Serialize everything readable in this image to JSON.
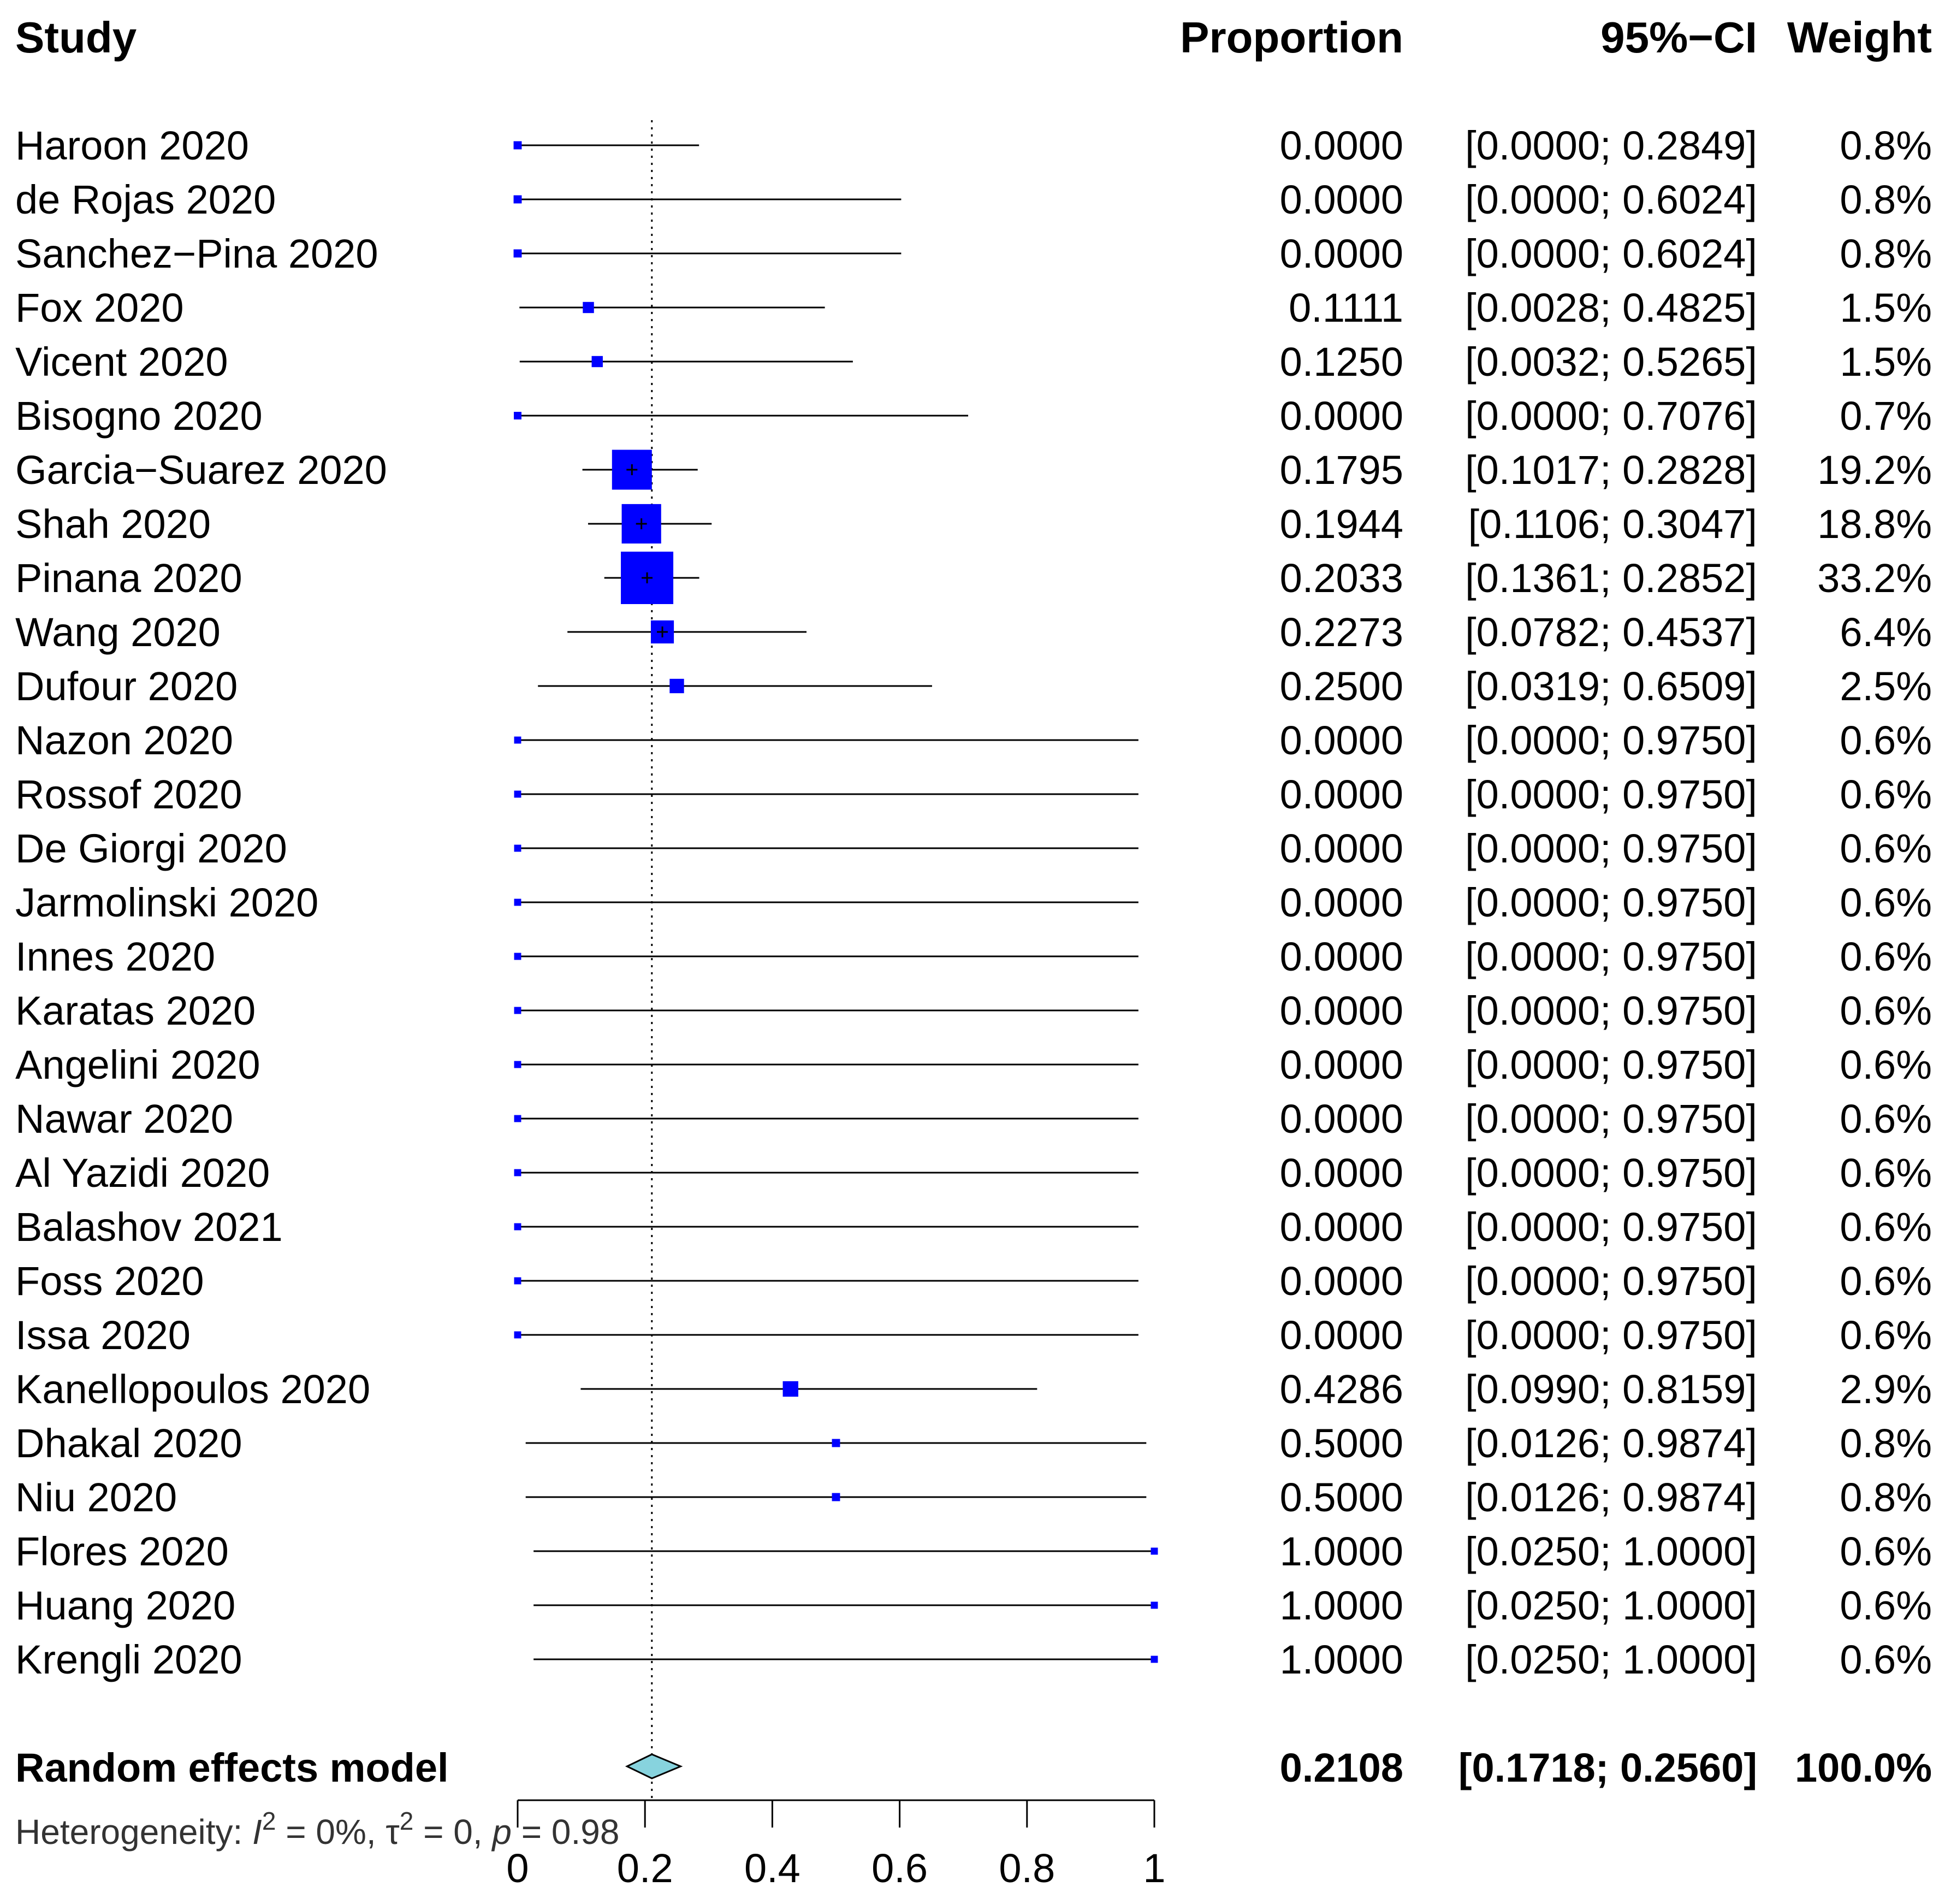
{
  "chart_data": {
    "type": "forest",
    "headers": {
      "study": "Study",
      "proportion": "Proportion",
      "ci": "95%−CI",
      "weight": "Weight"
    },
    "studies": [
      {
        "name": "Haroon 2020",
        "proportion": 0.0,
        "lower": 0.0,
        "upper": 0.2849,
        "weight": 0.8,
        "prop_text": "0.0000",
        "ci_text": "[0.0000; 0.2849]",
        "weight_text": "0.8%"
      },
      {
        "name": "de Rojas 2020",
        "proportion": 0.0,
        "lower": 0.0,
        "upper": 0.6024,
        "weight": 0.8,
        "prop_text": "0.0000",
        "ci_text": "[0.0000; 0.6024]",
        "weight_text": "0.8%"
      },
      {
        "name": "Sanchez−Pina 2020",
        "proportion": 0.0,
        "lower": 0.0,
        "upper": 0.6024,
        "weight": 0.8,
        "prop_text": "0.0000",
        "ci_text": "[0.0000; 0.6024]",
        "weight_text": "0.8%"
      },
      {
        "name": "Fox 2020",
        "proportion": 0.1111,
        "lower": 0.0028,
        "upper": 0.4825,
        "weight": 1.5,
        "prop_text": "0.1111",
        "ci_text": "[0.0028; 0.4825]",
        "weight_text": "1.5%"
      },
      {
        "name": "Vicent 2020",
        "proportion": 0.125,
        "lower": 0.0032,
        "upper": 0.5265,
        "weight": 1.5,
        "prop_text": "0.1250",
        "ci_text": "[0.0032; 0.5265]",
        "weight_text": "1.5%"
      },
      {
        "name": "Bisogno 2020",
        "proportion": 0.0,
        "lower": 0.0,
        "upper": 0.7076,
        "weight": 0.7,
        "prop_text": "0.0000",
        "ci_text": "[0.0000; 0.7076]",
        "weight_text": "0.7%"
      },
      {
        "name": "Garcia−Suarez 2020",
        "proportion": 0.1795,
        "lower": 0.1017,
        "upper": 0.2828,
        "weight": 19.2,
        "prop_text": "0.1795",
        "ci_text": "[0.1017; 0.2828]",
        "weight_text": "19.2%"
      },
      {
        "name": "Shah 2020",
        "proportion": 0.1944,
        "lower": 0.1106,
        "upper": 0.3047,
        "weight": 18.8,
        "prop_text": "0.1944",
        "ci_text": "[0.1106; 0.3047]",
        "weight_text": "18.8%"
      },
      {
        "name": "Pinana 2020",
        "proportion": 0.2033,
        "lower": 0.1361,
        "upper": 0.2852,
        "weight": 33.2,
        "prop_text": "0.2033",
        "ci_text": "[0.1361; 0.2852]",
        "weight_text": "33.2%"
      },
      {
        "name": "Wang 2020",
        "proportion": 0.2273,
        "lower": 0.0782,
        "upper": 0.4537,
        "weight": 6.4,
        "prop_text": "0.2273",
        "ci_text": "[0.0782; 0.4537]",
        "weight_text": "6.4%"
      },
      {
        "name": "Dufour 2020",
        "proportion": 0.25,
        "lower": 0.0319,
        "upper": 0.6509,
        "weight": 2.5,
        "prop_text": "0.2500",
        "ci_text": "[0.0319; 0.6509]",
        "weight_text": "2.5%"
      },
      {
        "name": "Nazon 2020",
        "proportion": 0.0,
        "lower": 0.0,
        "upper": 0.975,
        "weight": 0.6,
        "prop_text": "0.0000",
        "ci_text": "[0.0000; 0.9750]",
        "weight_text": "0.6%"
      },
      {
        "name": "Rossof 2020",
        "proportion": 0.0,
        "lower": 0.0,
        "upper": 0.975,
        "weight": 0.6,
        "prop_text": "0.0000",
        "ci_text": "[0.0000; 0.9750]",
        "weight_text": "0.6%"
      },
      {
        "name": "De Giorgi 2020",
        "proportion": 0.0,
        "lower": 0.0,
        "upper": 0.975,
        "weight": 0.6,
        "prop_text": "0.0000",
        "ci_text": "[0.0000; 0.9750]",
        "weight_text": "0.6%"
      },
      {
        "name": "Jarmolinski 2020",
        "proportion": 0.0,
        "lower": 0.0,
        "upper": 0.975,
        "weight": 0.6,
        "prop_text": "0.0000",
        "ci_text": "[0.0000; 0.9750]",
        "weight_text": "0.6%"
      },
      {
        "name": "Innes 2020",
        "proportion": 0.0,
        "lower": 0.0,
        "upper": 0.975,
        "weight": 0.6,
        "prop_text": "0.0000",
        "ci_text": "[0.0000; 0.9750]",
        "weight_text": "0.6%"
      },
      {
        "name": "Karatas 2020",
        "proportion": 0.0,
        "lower": 0.0,
        "upper": 0.975,
        "weight": 0.6,
        "prop_text": "0.0000",
        "ci_text": "[0.0000; 0.9750]",
        "weight_text": "0.6%"
      },
      {
        "name": "Angelini 2020",
        "proportion": 0.0,
        "lower": 0.0,
        "upper": 0.975,
        "weight": 0.6,
        "prop_text": "0.0000",
        "ci_text": "[0.0000; 0.9750]",
        "weight_text": "0.6%"
      },
      {
        "name": "Nawar 2020",
        "proportion": 0.0,
        "lower": 0.0,
        "upper": 0.975,
        "weight": 0.6,
        "prop_text": "0.0000",
        "ci_text": "[0.0000; 0.9750]",
        "weight_text": "0.6%"
      },
      {
        "name": "Al Yazidi 2020",
        "proportion": 0.0,
        "lower": 0.0,
        "upper": 0.975,
        "weight": 0.6,
        "prop_text": "0.0000",
        "ci_text": "[0.0000; 0.9750]",
        "weight_text": "0.6%"
      },
      {
        "name": "Balashov 2021",
        "proportion": 0.0,
        "lower": 0.0,
        "upper": 0.975,
        "weight": 0.6,
        "prop_text": "0.0000",
        "ci_text": "[0.0000; 0.9750]",
        "weight_text": "0.6%"
      },
      {
        "name": "Foss 2020",
        "proportion": 0.0,
        "lower": 0.0,
        "upper": 0.975,
        "weight": 0.6,
        "prop_text": "0.0000",
        "ci_text": "[0.0000; 0.9750]",
        "weight_text": "0.6%"
      },
      {
        "name": "Issa 2020",
        "proportion": 0.0,
        "lower": 0.0,
        "upper": 0.975,
        "weight": 0.6,
        "prop_text": "0.0000",
        "ci_text": "[0.0000; 0.9750]",
        "weight_text": "0.6%"
      },
      {
        "name": "Kanellopoulos 2020",
        "proportion": 0.4286,
        "lower": 0.099,
        "upper": 0.8159,
        "weight": 2.9,
        "prop_text": "0.4286",
        "ci_text": "[0.0990; 0.8159]",
        "weight_text": "2.9%"
      },
      {
        "name": "Dhakal 2020",
        "proportion": 0.5,
        "lower": 0.0126,
        "upper": 0.9874,
        "weight": 0.8,
        "prop_text": "0.5000",
        "ci_text": "[0.0126; 0.9874]",
        "weight_text": "0.8%"
      },
      {
        "name": "Niu 2020",
        "proportion": 0.5,
        "lower": 0.0126,
        "upper": 0.9874,
        "weight": 0.8,
        "prop_text": "0.5000",
        "ci_text": "[0.0126; 0.9874]",
        "weight_text": "0.8%"
      },
      {
        "name": "Flores 2020",
        "proportion": 1.0,
        "lower": 0.025,
        "upper": 1.0,
        "weight": 0.6,
        "prop_text": "1.0000",
        "ci_text": "[0.0250; 1.0000]",
        "weight_text": "0.6%"
      },
      {
        "name": "Huang 2020",
        "proportion": 1.0,
        "lower": 0.025,
        "upper": 1.0,
        "weight": 0.6,
        "prop_text": "1.0000",
        "ci_text": "[0.0250; 1.0000]",
        "weight_text": "0.6%"
      },
      {
        "name": "Krengli 2020",
        "proportion": 1.0,
        "lower": 0.025,
        "upper": 1.0,
        "weight": 0.6,
        "prop_text": "1.0000",
        "ci_text": "[0.0250; 1.0000]",
        "weight_text": "0.6%"
      }
    ],
    "summary": {
      "name": "Random effects model",
      "proportion": 0.2108,
      "lower": 0.1718,
      "upper": 0.256,
      "prop_text": "0.2108",
      "ci_text": "[0.1718; 0.2560]",
      "weight_text": "100.0%"
    },
    "heterogeneity": {
      "prefix": "Heterogeneity: ",
      "i2_symbol": "I",
      "i2_value": " = 0%, ",
      "tau_symbol": "τ",
      "tau_value": " = 0, ",
      "p_symbol": "p",
      "p_value": " = 0.98",
      "superscript": "2"
    },
    "x_axis": {
      "ticks": [
        0,
        0.2,
        0.4,
        0.6,
        0.8,
        1
      ],
      "tick_labels": [
        "0",
        "0.2",
        "0.4",
        "0.6",
        "0.8",
        "1"
      ],
      "range": [
        0,
        1
      ]
    },
    "reference_line": 0.2108,
    "colors": {
      "square": "#0000ff",
      "diamond_fill": "#87d3de",
      "line": "#000000"
    }
  }
}
